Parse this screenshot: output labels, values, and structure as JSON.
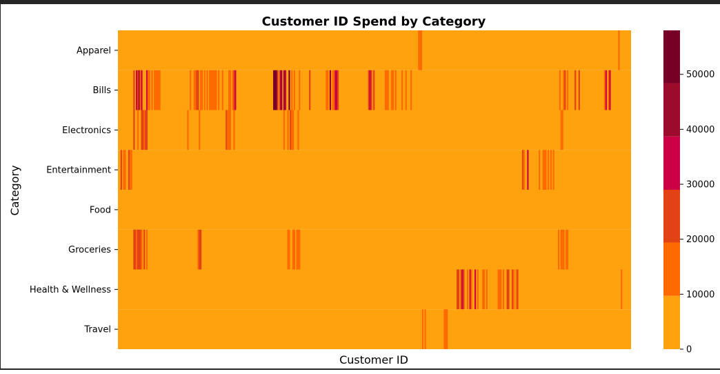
{
  "chart_data": {
    "type": "heatmap",
    "title": "Customer ID Spend by Category",
    "xlabel": "Customer ID",
    "ylabel": "Category",
    "rows": [
      "Apparel",
      "Bills",
      "Electronics",
      "Entertainment",
      "Food",
      "Groceries",
      "Health & Wellness",
      "Travel"
    ],
    "x_tick_labels": [],
    "colorbar": {
      "min": 0,
      "max": 58000,
      "ticks": [
        0,
        10000,
        20000,
        30000,
        40000,
        50000
      ],
      "tick_labels": [
        "0",
        "10000",
        "20000",
        "30000",
        "40000",
        "50000"
      ],
      "bins": [
        {
          "from": 0,
          "to": 9700,
          "color": "#FFA20E"
        },
        {
          "from": 9700,
          "to": 19400,
          "color": "#FF6A00"
        },
        {
          "from": 19400,
          "to": 29000,
          "color": "#E24214"
        },
        {
          "from": 29000,
          "to": 38700,
          "color": "#CC0044"
        },
        {
          "from": 38700,
          "to": 48400,
          "color": "#9C0A2C"
        },
        {
          "from": 48400,
          "to": 58000,
          "color": "#770027"
        }
      ]
    },
    "columns": 400,
    "segments": {
      "Apparel": [
        {
          "from": 0.586,
          "to": 0.592,
          "value": 15000
        },
        {
          "from": 0.964,
          "to": 0.978,
          "value": 16000
        }
      ],
      "Bills": [
        {
          "from": 0.031,
          "to": 0.062,
          "value": 35000
        },
        {
          "from": 0.062,
          "to": 0.085,
          "value": 15000
        },
        {
          "from": 0.137,
          "to": 0.16,
          "value": 26000
        },
        {
          "from": 0.16,
          "to": 0.21,
          "value": 15000
        },
        {
          "from": 0.215,
          "to": 0.235,
          "value": 28000
        },
        {
          "from": 0.3,
          "to": 0.335,
          "value": 50000
        },
        {
          "from": 0.335,
          "to": 0.38,
          "value": 17000
        },
        {
          "from": 0.405,
          "to": 0.43,
          "value": 33000
        },
        {
          "from": 0.48,
          "to": 0.5,
          "value": 30000
        },
        {
          "from": 0.52,
          "to": 0.582,
          "value": 15000
        },
        {
          "from": 0.858,
          "to": 0.9,
          "value": 24000
        },
        {
          "from": 0.94,
          "to": 0.962,
          "value": 32000
        }
      ],
      "Electronics": [
        {
          "from": 0.028,
          "to": 0.057,
          "value": 22000
        },
        {
          "from": 0.136,
          "to": 0.16,
          "value": 21000
        },
        {
          "from": 0.212,
          "to": 0.23,
          "value": 18000
        },
        {
          "from": 0.32,
          "to": 0.355,
          "value": 19000
        },
        {
          "from": 0.858,
          "to": 0.88,
          "value": 19000
        }
      ],
      "Entertainment": [
        {
          "from": 0.0,
          "to": 0.026,
          "value": 22000
        },
        {
          "from": 0.78,
          "to": 0.8,
          "value": 26000
        },
        {
          "from": 0.81,
          "to": 0.85,
          "value": 15000
        }
      ],
      "Food": [],
      "Groceries": [
        {
          "from": 0.031,
          "to": 0.06,
          "value": 24000
        },
        {
          "from": 0.136,
          "to": 0.162,
          "value": 20000
        },
        {
          "from": 0.33,
          "to": 0.36,
          "value": 17000
        },
        {
          "from": 0.858,
          "to": 0.88,
          "value": 17000
        }
      ],
      "Health & Wellness": [
        {
          "from": 0.593,
          "to": 0.606,
          "value": 15000
        },
        {
          "from": 0.662,
          "to": 0.7,
          "value": 34000
        },
        {
          "from": 0.7,
          "to": 0.78,
          "value": 19000
        },
        {
          "from": 0.982,
          "to": 0.986,
          "value": 15000
        }
      ],
      "Travel": [
        {
          "from": 0.593,
          "to": 0.608,
          "value": 16000
        },
        {
          "from": 0.637,
          "to": 0.642,
          "value": 15000
        }
      ]
    }
  }
}
